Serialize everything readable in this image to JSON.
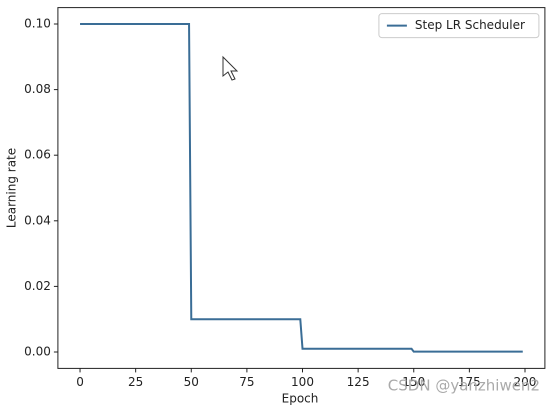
{
  "chart_data": {
    "type": "line",
    "xlabel": "Epoch",
    "ylabel": "Learning rate",
    "x": [
      0,
      49,
      50,
      99,
      100,
      149,
      150,
      199
    ],
    "series": [
      {
        "name": "Step LR Scheduler",
        "color": "#3a6d96",
        "values": [
          0.1,
          0.1,
          0.01,
          0.01,
          0.001,
          0.001,
          0.0001,
          0.0001
        ]
      }
    ],
    "xlim": [
      -9.95,
      208.95
    ],
    "ylim": [
      -0.005,
      0.105
    ],
    "xticks": [
      0,
      25,
      50,
      75,
      100,
      125,
      150,
      175,
      200
    ],
    "yticks": [
      {
        "value": 0,
        "label": "0.00"
      },
      {
        "value": 0.02,
        "label": "0.02"
      },
      {
        "value": 0.04,
        "label": "0.04"
      },
      {
        "value": 0.06,
        "label": "0.06"
      },
      {
        "value": 0.08,
        "label": "0.08"
      },
      {
        "value": 0.1,
        "label": "0.10"
      }
    ],
    "legend": "upper right",
    "annotations": [
      "CSDN @yanzhiwen2"
    ]
  }
}
